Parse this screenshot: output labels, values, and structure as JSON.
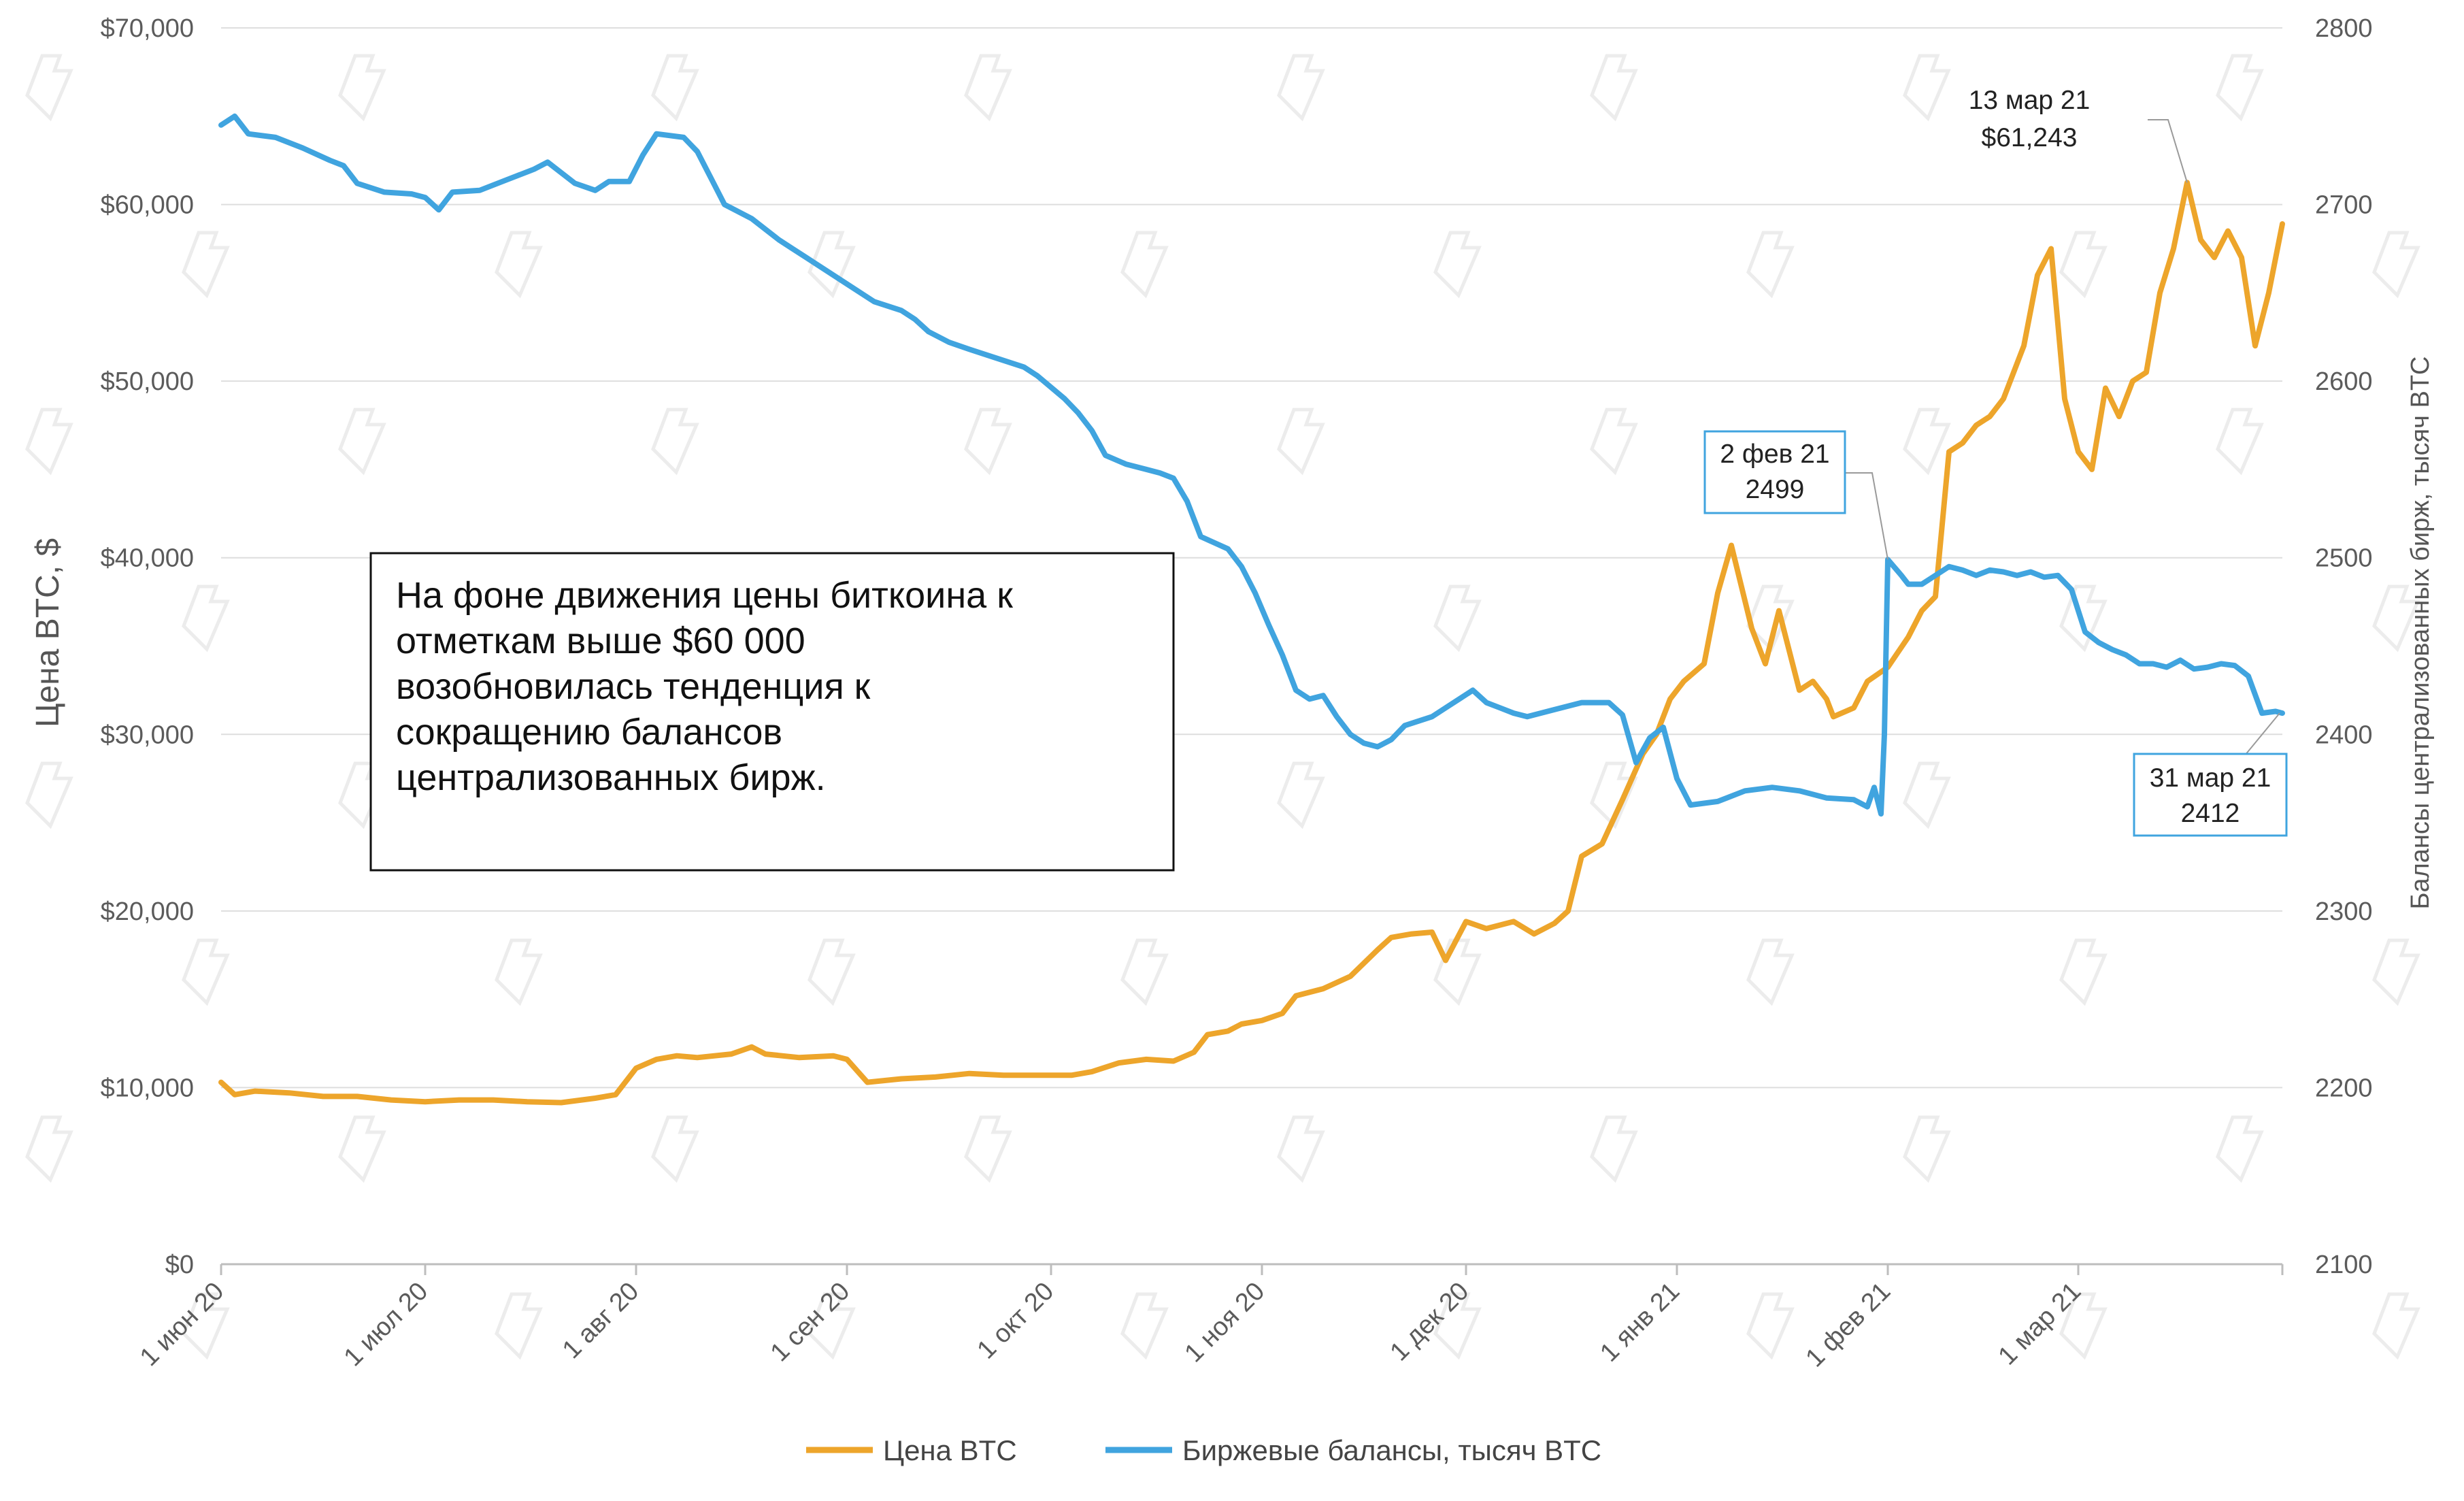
{
  "chart_data": {
    "type": "line",
    "title": "",
    "x_tick_labels": [
      "1 июн 20",
      "1 июл 20",
      "1 авг 20",
      "1 сен 20",
      "1 окт 20",
      "1 ноя 20",
      "1 дек 20",
      "1 янв 21",
      "1 фев 21",
      "1 мар 21"
    ],
    "x_tick_days": [
      0,
      30,
      61,
      92,
      122,
      153,
      183,
      214,
      245,
      273
    ],
    "x_range_days": [
      0,
      303
    ],
    "ylabel_left": "Цена BTC, $",
    "ylabel_right": "Балансы централизованных бирж, тысяч BTC",
    "y_left_range": [
      0,
      70000
    ],
    "y_left_ticks": [
      0,
      10000,
      20000,
      30000,
      40000,
      50000,
      60000,
      70000
    ],
    "y_left_tick_labels": [
      "$0",
      "$10,000",
      "$20,000",
      "$30,000",
      "$40,000",
      "$50,000",
      "$60,000",
      "$70,000"
    ],
    "y_right_range": [
      2100,
      2800
    ],
    "y_right_ticks": [
      2100,
      2200,
      2300,
      2400,
      2500,
      2600,
      2700,
      2800
    ],
    "y_right_tick_labels": [
      "2100",
      "2200",
      "2300",
      "2400",
      "2500",
      "2600",
      "2700",
      "2800"
    ],
    "grid": "horizontal",
    "legend_position": "bottom-center",
    "series": [
      {
        "name": "Цена BTC",
        "axis": "left",
        "color": "#EDA52B",
        "points": [
          [
            0,
            10300
          ],
          [
            2,
            9600
          ],
          [
            5,
            9800
          ],
          [
            10,
            9700
          ],
          [
            15,
            9500
          ],
          [
            20,
            9500
          ],
          [
            25,
            9300
          ],
          [
            30,
            9200
          ],
          [
            35,
            9300
          ],
          [
            40,
            9300
          ],
          [
            45,
            9200
          ],
          [
            50,
            9150
          ],
          [
            55,
            9400
          ],
          [
            58,
            9600
          ],
          [
            61,
            11100
          ],
          [
            64,
            11600
          ],
          [
            67,
            11800
          ],
          [
            70,
            11700
          ],
          [
            75,
            11900
          ],
          [
            78,
            12300
          ],
          [
            80,
            11900
          ],
          [
            85,
            11700
          ],
          [
            90,
            11800
          ],
          [
            92,
            11600
          ],
          [
            95,
            10300
          ],
          [
            100,
            10500
          ],
          [
            105,
            10600
          ],
          [
            110,
            10800
          ],
          [
            115,
            10700
          ],
          [
            120,
            10700
          ],
          [
            125,
            10700
          ],
          [
            128,
            10900
          ],
          [
            132,
            11400
          ],
          [
            136,
            11600
          ],
          [
            140,
            11500
          ],
          [
            143,
            12000
          ],
          [
            145,
            13000
          ],
          [
            148,
            13200
          ],
          [
            150,
            13600
          ],
          [
            153,
            13800
          ],
          [
            156,
            14200
          ],
          [
            158,
            15200
          ],
          [
            162,
            15600
          ],
          [
            166,
            16300
          ],
          [
            170,
            17800
          ],
          [
            172,
            18500
          ],
          [
            175,
            18700
          ],
          [
            178,
            18800
          ],
          [
            180,
            17200
          ],
          [
            183,
            19400
          ],
          [
            186,
            19000
          ],
          [
            190,
            19400
          ],
          [
            193,
            18700
          ],
          [
            196,
            19300
          ],
          [
            198,
            20000
          ],
          [
            200,
            23100
          ],
          [
            203,
            23800
          ],
          [
            206,
            26300
          ],
          [
            209,
            28900
          ],
          [
            211,
            30000
          ],
          [
            213,
            32000
          ],
          [
            215,
            33000
          ],
          [
            218,
            34000
          ],
          [
            220,
            38000
          ],
          [
            222,
            40700
          ],
          [
            225,
            36000
          ],
          [
            227,
            34000
          ],
          [
            229,
            37000
          ],
          [
            232,
            32500
          ],
          [
            234,
            33000
          ],
          [
            236,
            32000
          ],
          [
            237,
            31000
          ],
          [
            240,
            31500
          ],
          [
            242,
            33000
          ],
          [
            245,
            33800
          ],
          [
            248,
            35500
          ],
          [
            250,
            37000
          ],
          [
            252,
            37800
          ],
          [
            254,
            46000
          ],
          [
            256,
            46500
          ],
          [
            258,
            47500
          ],
          [
            260,
            48000
          ],
          [
            262,
            49000
          ],
          [
            265,
            52000
          ],
          [
            267,
            56000
          ],
          [
            269,
            57500
          ],
          [
            271,
            49000
          ],
          [
            273,
            46000
          ],
          [
            275,
            45000
          ],
          [
            277,
            49600
          ],
          [
            279,
            48000
          ],
          [
            281,
            50000
          ],
          [
            283,
            50500
          ],
          [
            285,
            55000
          ],
          [
            287,
            57500
          ],
          [
            289,
            61243
          ],
          [
            291,
            58000
          ],
          [
            293,
            57000
          ],
          [
            295,
            58500
          ],
          [
            297,
            57000
          ],
          [
            299,
            52000
          ],
          [
            301,
            55000
          ],
          [
            303,
            58900
          ]
        ]
      },
      {
        "name": "Биржевые балансы, тысяч BTC",
        "axis": "right",
        "color": "#40A4DF",
        "points": [
          [
            0,
            2745
          ],
          [
            2,
            2750
          ],
          [
            4,
            2740
          ],
          [
            8,
            2738
          ],
          [
            12,
            2732
          ],
          [
            16,
            2725
          ],
          [
            18,
            2722
          ],
          [
            20,
            2712
          ],
          [
            24,
            2707
          ],
          [
            28,
            2706
          ],
          [
            30,
            2704
          ],
          [
            32,
            2697
          ],
          [
            34,
            2707
          ],
          [
            38,
            2708
          ],
          [
            42,
            2714
          ],
          [
            46,
            2720
          ],
          [
            48,
            2724
          ],
          [
            52,
            2712
          ],
          [
            55,
            2708
          ],
          [
            57,
            2713
          ],
          [
            60,
            2713
          ],
          [
            62,
            2728
          ],
          [
            64,
            2740
          ],
          [
            68,
            2738
          ],
          [
            70,
            2730
          ],
          [
            72,
            2715
          ],
          [
            74,
            2700
          ],
          [
            78,
            2692
          ],
          [
            82,
            2680
          ],
          [
            84,
            2675
          ],
          [
            86,
            2670
          ],
          [
            90,
            2660
          ],
          [
            92,
            2655
          ],
          [
            96,
            2645
          ],
          [
            100,
            2640
          ],
          [
            102,
            2635
          ],
          [
            104,
            2628
          ],
          [
            107,
            2622
          ],
          [
            110,
            2618
          ],
          [
            114,
            2613
          ],
          [
            118,
            2608
          ],
          [
            120,
            2603
          ],
          [
            124,
            2590
          ],
          [
            126,
            2582
          ],
          [
            128,
            2572
          ],
          [
            130,
            2558
          ],
          [
            133,
            2553
          ],
          [
            136,
            2550
          ],
          [
            138,
            2548
          ],
          [
            140,
            2545
          ],
          [
            142,
            2532
          ],
          [
            144,
            2512
          ],
          [
            148,
            2505
          ],
          [
            150,
            2495
          ],
          [
            152,
            2480
          ],
          [
            154,
            2462
          ],
          [
            156,
            2445
          ],
          [
            158,
            2425
          ],
          [
            160,
            2420
          ],
          [
            162,
            2422
          ],
          [
            164,
            2410
          ],
          [
            166,
            2400
          ],
          [
            168,
            2395
          ],
          [
            170,
            2393
          ],
          [
            172,
            2397
          ],
          [
            174,
            2405
          ],
          [
            178,
            2410
          ],
          [
            180,
            2415
          ],
          [
            182,
            2420
          ],
          [
            184,
            2425
          ],
          [
            186,
            2418
          ],
          [
            188,
            2415
          ],
          [
            190,
            2412
          ],
          [
            192,
            2410
          ],
          [
            196,
            2414
          ],
          [
            200,
            2418
          ],
          [
            204,
            2418
          ],
          [
            206,
            2411
          ],
          [
            208,
            2384
          ],
          [
            210,
            2398
          ],
          [
            212,
            2404
          ],
          [
            214,
            2375
          ],
          [
            216,
            2360
          ],
          [
            220,
            2362
          ],
          [
            224,
            2368
          ],
          [
            228,
            2370
          ],
          [
            232,
            2368
          ],
          [
            236,
            2364
          ],
          [
            240,
            2363
          ],
          [
            242,
            2359
          ],
          [
            243,
            2370
          ],
          [
            244,
            2355
          ],
          [
            244.5,
            2400
          ],
          [
            245,
            2499
          ],
          [
            247,
            2490
          ],
          [
            248,
            2485
          ],
          [
            250,
            2485
          ],
          [
            252,
            2490
          ],
          [
            254,
            2495
          ],
          [
            256,
            2493
          ],
          [
            258,
            2490
          ],
          [
            260,
            2493
          ],
          [
            262,
            2492
          ],
          [
            264,
            2490
          ],
          [
            266,
            2492
          ],
          [
            268,
            2489
          ],
          [
            270,
            2490
          ],
          [
            272,
            2482
          ],
          [
            274,
            2458
          ],
          [
            276,
            2452
          ],
          [
            278,
            2448
          ],
          [
            280,
            2445
          ],
          [
            282,
            2440
          ],
          [
            284,
            2440
          ],
          [
            286,
            2438
          ],
          [
            288,
            2442
          ],
          [
            290,
            2437
          ],
          [
            292,
            2438
          ],
          [
            294,
            2440
          ],
          [
            296,
            2439
          ],
          [
            298,
            2433
          ],
          [
            300,
            2412
          ],
          [
            302,
            2413
          ],
          [
            303,
            2412
          ]
        ]
      }
    ],
    "annotations": [
      {
        "line1": "13 мар 21",
        "line2": "$61,243",
        "boxed": false
      },
      {
        "line1": "2 фев 21",
        "line2": "2499",
        "boxed": true
      },
      {
        "line1": "31 мар 21",
        "line2": "2412",
        "boxed": true
      }
    ],
    "note": {
      "lines": [
        "На фоне движения цены биткоина к",
        "отметкам выше $60 000",
        "возобновилась тенденция к",
        "сокращению балансов",
        "централизованных бирж."
      ]
    }
  }
}
